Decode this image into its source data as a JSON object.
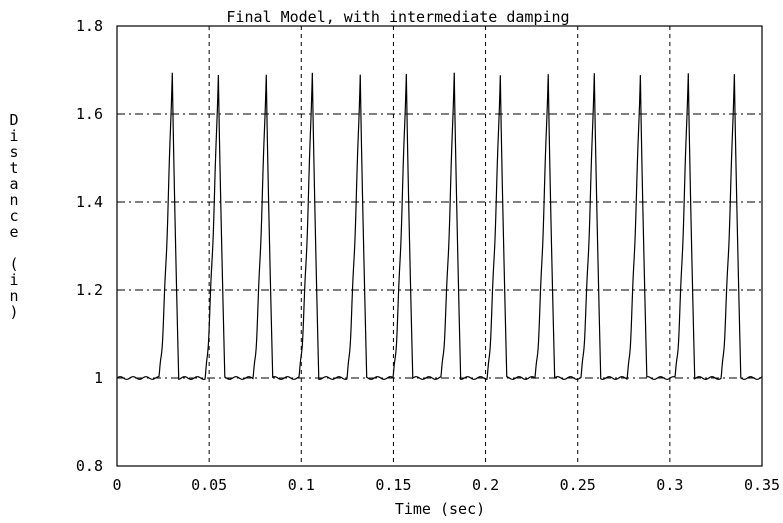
{
  "chart_data": {
    "type": "line",
    "title": "Final Model, with intermediate damping",
    "xlabel": "Time (sec)",
    "ylabel": "Distance (in)",
    "xlim": [
      0,
      0.35
    ],
    "ylim": [
      0.8,
      1.8
    ],
    "grid": true,
    "x_ticks": [
      0,
      0.05,
      0.1,
      0.15,
      0.2,
      0.25,
      0.3,
      0.35
    ],
    "x_tick_labels": [
      "0",
      "0.05",
      "0.1",
      "0.15",
      "0.2",
      "0.25",
      "0.3",
      "0.35"
    ],
    "y_ticks": [
      0.8,
      1.0,
      1.2,
      1.4,
      1.6,
      1.8
    ],
    "y_tick_labels": [
      "0.8",
      "1",
      "1.2",
      "1.4",
      "1.6",
      "1.8"
    ],
    "series": [
      {
        "color": "#000000",
        "baseline": 1.0,
        "peak_value": 1.7,
        "peak_times": [
          0.03,
          0.055,
          0.081,
          0.106,
          0.132,
          0.157,
          0.183,
          0.208,
          0.234,
          0.259,
          0.284,
          0.31,
          0.335
        ]
      }
    ]
  }
}
